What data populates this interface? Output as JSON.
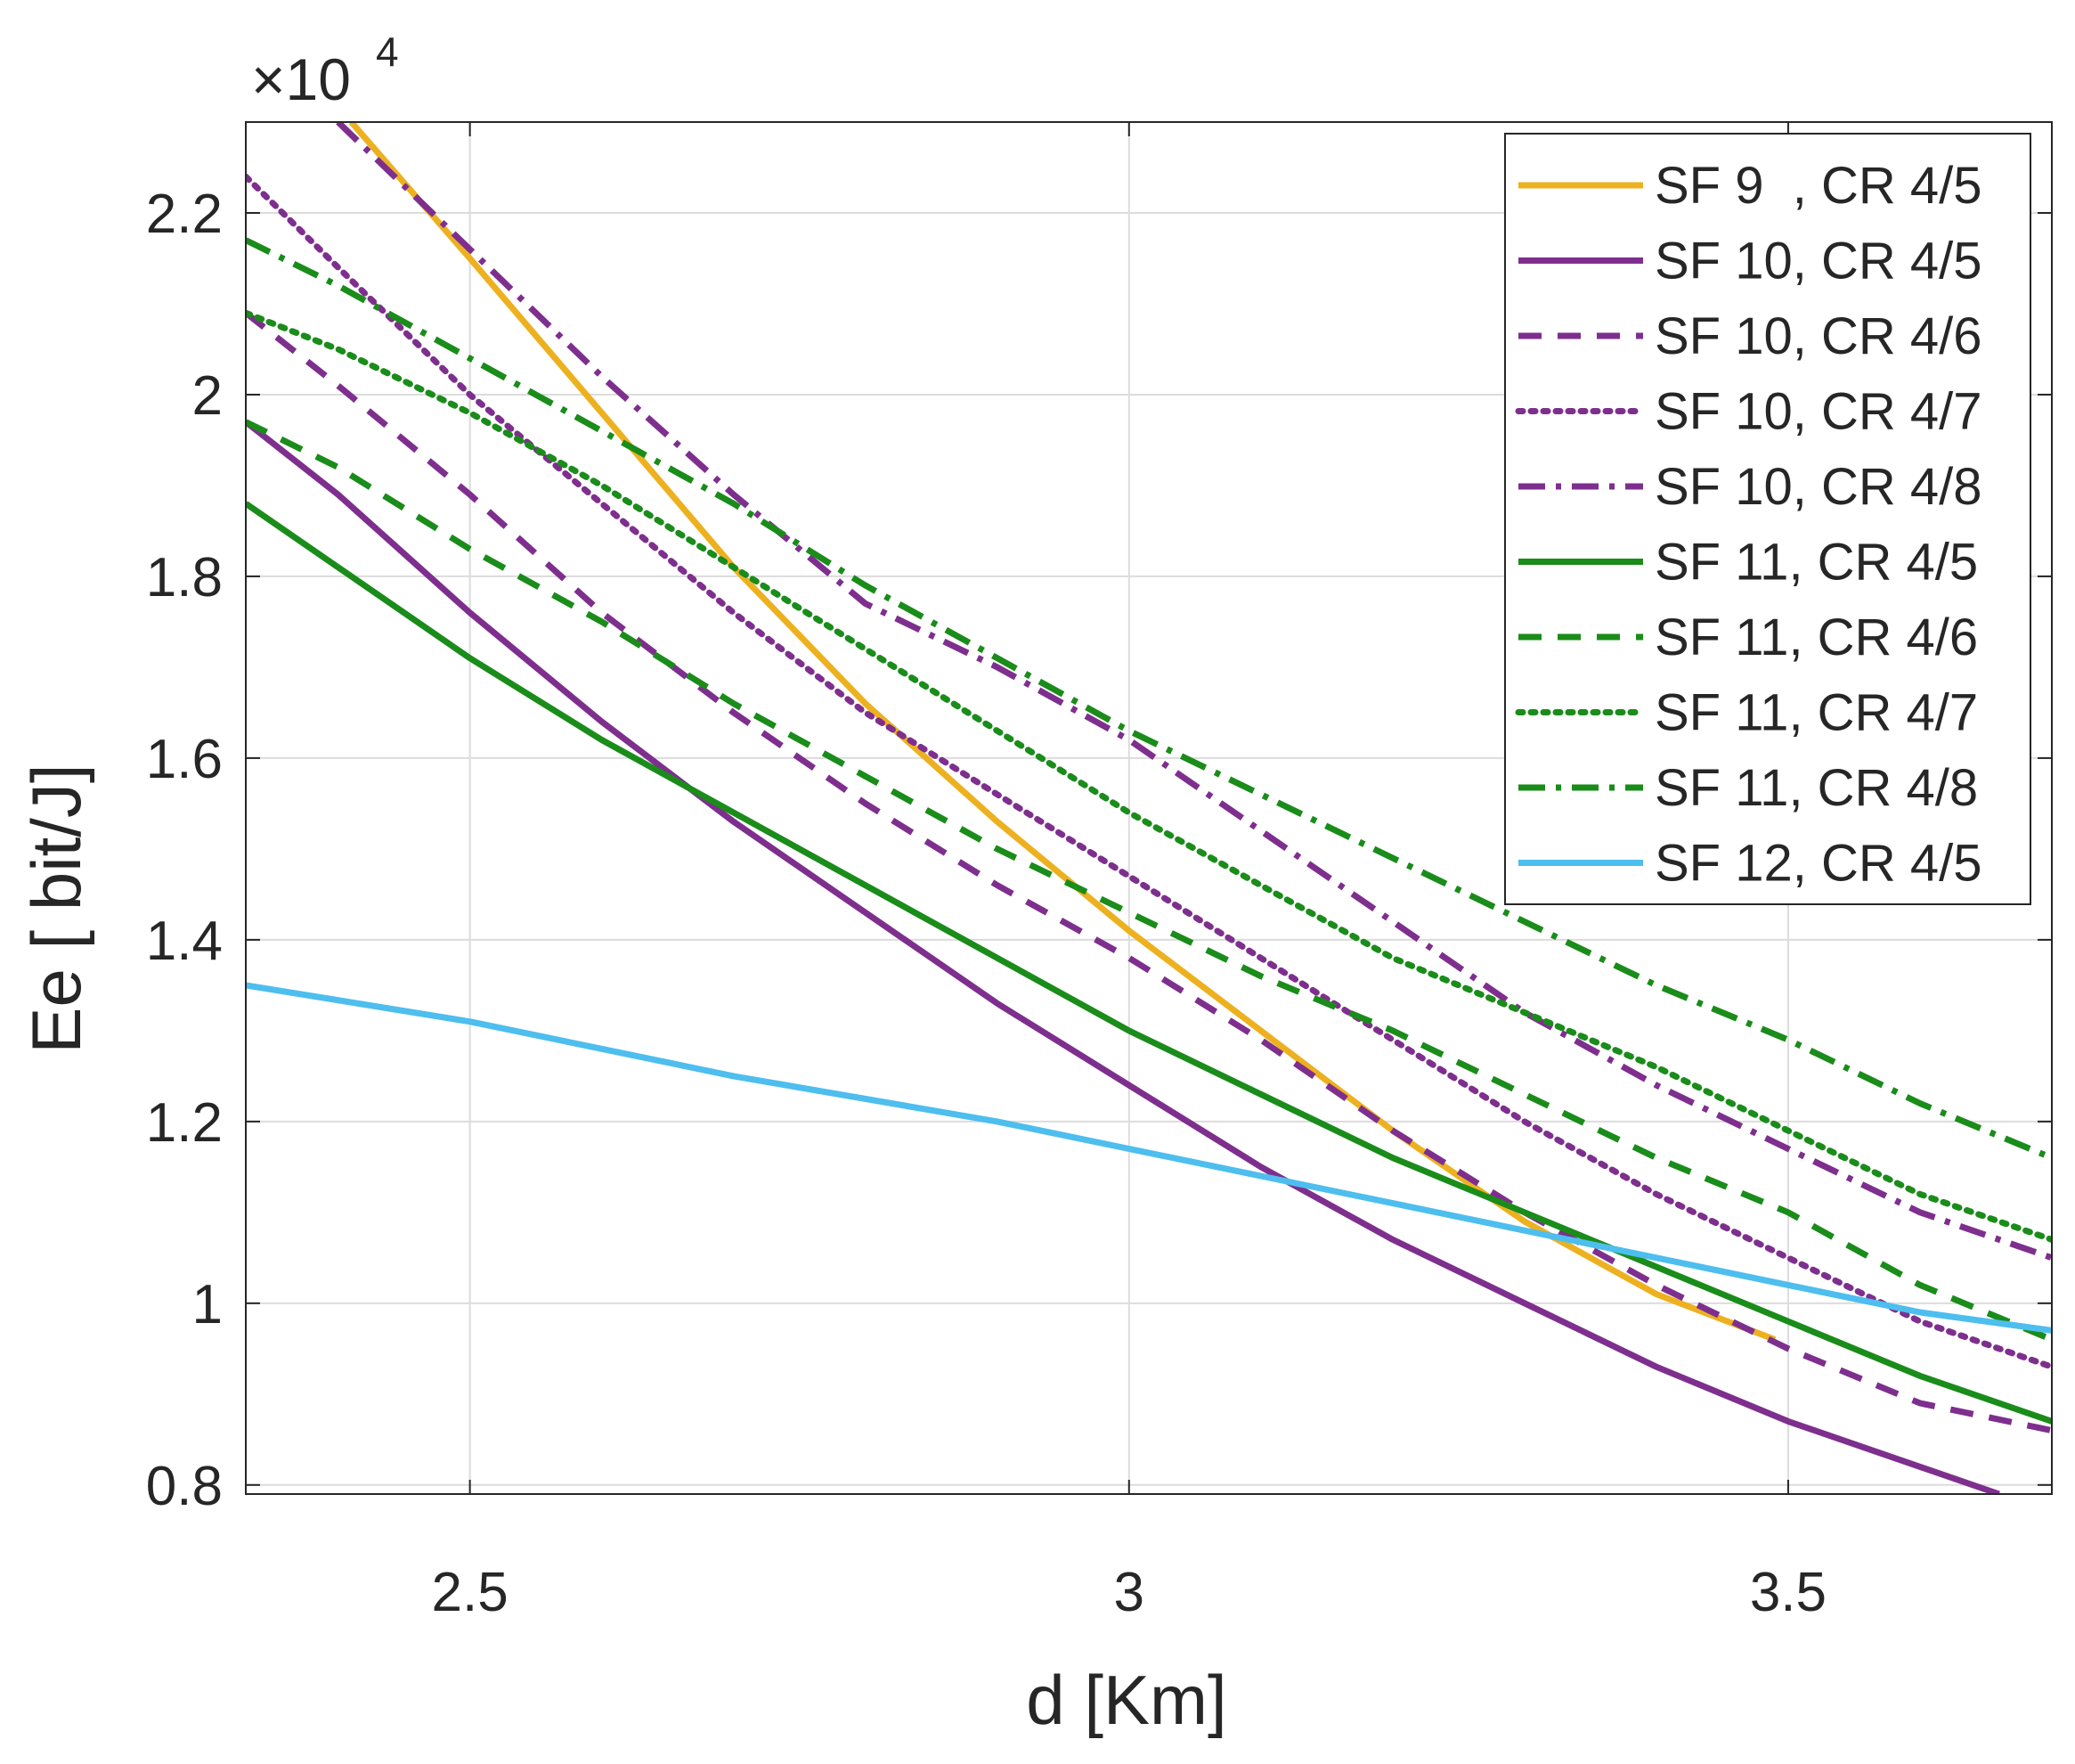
{
  "chart_data": {
    "type": "line",
    "title": "",
    "xlabel": "d [Km]",
    "ylabel": "Ee [ bit/J]",
    "exponent_label": "×10",
    "exponent_power": "4",
    "xlim": [
      2.33,
      3.7
    ],
    "ylim": [
      0.79,
      2.3
    ],
    "xticks": [
      2.5,
      3,
      3.5
    ],
    "xtick_labels": [
      "2.5",
      "3",
      "3.5"
    ],
    "yticks": [
      0.8,
      1,
      1.2,
      1.4,
      1.6,
      1.8,
      2,
      2.2
    ],
    "ytick_labels": [
      "0.8",
      "1",
      "1.2",
      "1.4",
      "1.6",
      "1.8",
      "2",
      "2.2"
    ],
    "grid": true,
    "legend_position": "top-right",
    "y_unit_note": "values in units of 10^4 bit/J",
    "series": [
      {
        "name": "SF 9  , CR 4/5",
        "color": "#EDB120",
        "style": "solid",
        "x": [
          2.41,
          2.5,
          2.6,
          2.7,
          2.8,
          2.9,
          3.0,
          3.1,
          3.2,
          3.3,
          3.4,
          3.49
        ],
        "y": [
          2.3,
          2.15,
          1.98,
          1.81,
          1.66,
          1.53,
          1.41,
          1.3,
          1.19,
          1.09,
          1.01,
          0.96
        ]
      },
      {
        "name": "SF 10, CR 4/5",
        "color": "#7E2F8E",
        "style": "solid",
        "x": [
          2.33,
          2.4,
          2.5,
          2.6,
          2.7,
          2.8,
          2.9,
          3.0,
          3.1,
          3.2,
          3.3,
          3.4,
          3.5,
          3.6,
          3.66
        ],
        "y": [
          1.97,
          1.89,
          1.76,
          1.64,
          1.53,
          1.43,
          1.33,
          1.24,
          1.15,
          1.07,
          1.0,
          0.93,
          0.87,
          0.82,
          0.79
        ]
      },
      {
        "name": "SF 10, CR 4/6",
        "color": "#7E2F8E",
        "style": "dash",
        "x": [
          2.33,
          2.4,
          2.5,
          2.6,
          2.7,
          2.8,
          2.9,
          3.0,
          3.1,
          3.2,
          3.3,
          3.4,
          3.5,
          3.6,
          3.7
        ],
        "y": [
          2.09,
          2.01,
          1.89,
          1.76,
          1.65,
          1.55,
          1.46,
          1.38,
          1.29,
          1.19,
          1.1,
          1.02,
          0.95,
          0.89,
          0.86
        ]
      },
      {
        "name": "SF 10, CR 4/7",
        "color": "#7E2F8E",
        "style": "dot",
        "x": [
          2.33,
          2.4,
          2.5,
          2.6,
          2.7,
          2.8,
          2.9,
          3.0,
          3.1,
          3.2,
          3.3,
          3.4,
          3.5,
          3.6,
          3.7
        ],
        "y": [
          2.24,
          2.14,
          2.0,
          1.88,
          1.76,
          1.65,
          1.56,
          1.47,
          1.38,
          1.29,
          1.2,
          1.12,
          1.05,
          0.98,
          0.93
        ]
      },
      {
        "name": "SF 10, CR 4/8",
        "color": "#7E2F8E",
        "style": "dashdot",
        "x": [
          2.4,
          2.5,
          2.6,
          2.7,
          2.8,
          2.9,
          3.0,
          3.1,
          3.2,
          3.3,
          3.4,
          3.5,
          3.6,
          3.7
        ],
        "y": [
          2.3,
          2.16,
          2.02,
          1.89,
          1.77,
          1.7,
          1.62,
          1.52,
          1.42,
          1.32,
          1.24,
          1.17,
          1.1,
          1.05
        ]
      },
      {
        "name": "SF 11, CR 4/5",
        "color": "#1A8C1A",
        "style": "solid",
        "x": [
          2.33,
          2.4,
          2.5,
          2.6,
          2.7,
          2.8,
          2.9,
          3.0,
          3.1,
          3.2,
          3.3,
          3.4,
          3.5,
          3.6,
          3.7
        ],
        "y": [
          1.88,
          1.81,
          1.71,
          1.62,
          1.54,
          1.46,
          1.38,
          1.3,
          1.23,
          1.16,
          1.1,
          1.04,
          0.98,
          0.92,
          0.87
        ]
      },
      {
        "name": "SF 11, CR 4/6",
        "color": "#1A8C1A",
        "style": "dash",
        "x": [
          2.33,
          2.4,
          2.5,
          2.6,
          2.7,
          2.8,
          2.9,
          3.0,
          3.1,
          3.2,
          3.3,
          3.4,
          3.5,
          3.6,
          3.7
        ],
        "y": [
          1.97,
          1.92,
          1.83,
          1.75,
          1.66,
          1.58,
          1.5,
          1.43,
          1.36,
          1.3,
          1.23,
          1.16,
          1.1,
          1.02,
          0.96
        ]
      },
      {
        "name": "SF 11, CR 4/7",
        "color": "#1A8C1A",
        "style": "dot",
        "x": [
          2.33,
          2.4,
          2.5,
          2.6,
          2.7,
          2.8,
          2.9,
          3.0,
          3.1,
          3.2,
          3.3,
          3.4,
          3.5,
          3.6,
          3.7
        ],
        "y": [
          2.09,
          2.05,
          1.98,
          1.9,
          1.81,
          1.72,
          1.63,
          1.54,
          1.46,
          1.38,
          1.32,
          1.26,
          1.19,
          1.12,
          1.07
        ]
      },
      {
        "name": "SF 11, CR 4/8",
        "color": "#1A8C1A",
        "style": "dashdot",
        "x": [
          2.33,
          2.4,
          2.5,
          2.6,
          2.7,
          2.8,
          2.9,
          3.0,
          3.1,
          3.2,
          3.3,
          3.4,
          3.5,
          3.6,
          3.7
        ],
        "y": [
          2.17,
          2.12,
          2.04,
          1.96,
          1.88,
          1.79,
          1.71,
          1.63,
          1.56,
          1.49,
          1.42,
          1.35,
          1.29,
          1.22,
          1.16
        ]
      },
      {
        "name": "SF 12, CR 4/5",
        "color": "#4DBEEE",
        "style": "solid",
        "x": [
          2.33,
          2.5,
          2.7,
          2.9,
          3.0,
          3.1,
          3.2,
          3.3,
          3.4,
          3.5,
          3.6,
          3.7
        ],
        "y": [
          1.35,
          1.31,
          1.25,
          1.2,
          1.17,
          1.14,
          1.11,
          1.08,
          1.05,
          1.02,
          0.99,
          0.97
        ]
      }
    ]
  }
}
